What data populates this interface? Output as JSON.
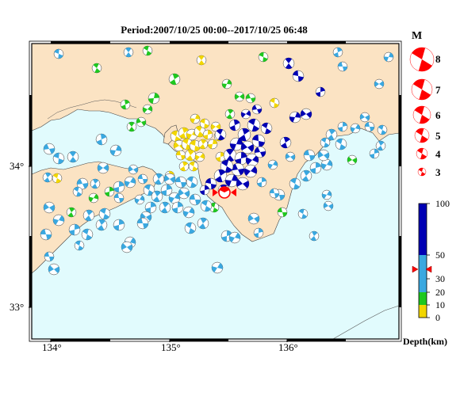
{
  "title": "Period:2007/10/25 00:00--2017/10/25 06:48",
  "axes": {
    "x_ticks": [
      "134°",
      "135°",
      "136°"
    ],
    "y_ticks": [
      "34°",
      "33°"
    ]
  },
  "legend": {
    "magnitude_title": "M",
    "magnitudes": [
      "8",
      "7",
      "6",
      "5",
      "4",
      "3"
    ],
    "depth_title": "Depth(km)",
    "depth_ticks": [
      "100",
      "50",
      "30",
      "20",
      "10",
      "0"
    ],
    "depth_colors": {
      "0-10": "#f2d600",
      "10-20": "#1fc81f",
      "20-30": "#3aa8e0",
      "30-50": "#3aa8e0",
      "50-100": "#0000b4"
    },
    "event_depth_km": 40
  },
  "colors": {
    "land": "#fbe3c3",
    "sea": "#e1fbfd",
    "highlight": "#ff0000",
    "frame": "#000000"
  }
}
